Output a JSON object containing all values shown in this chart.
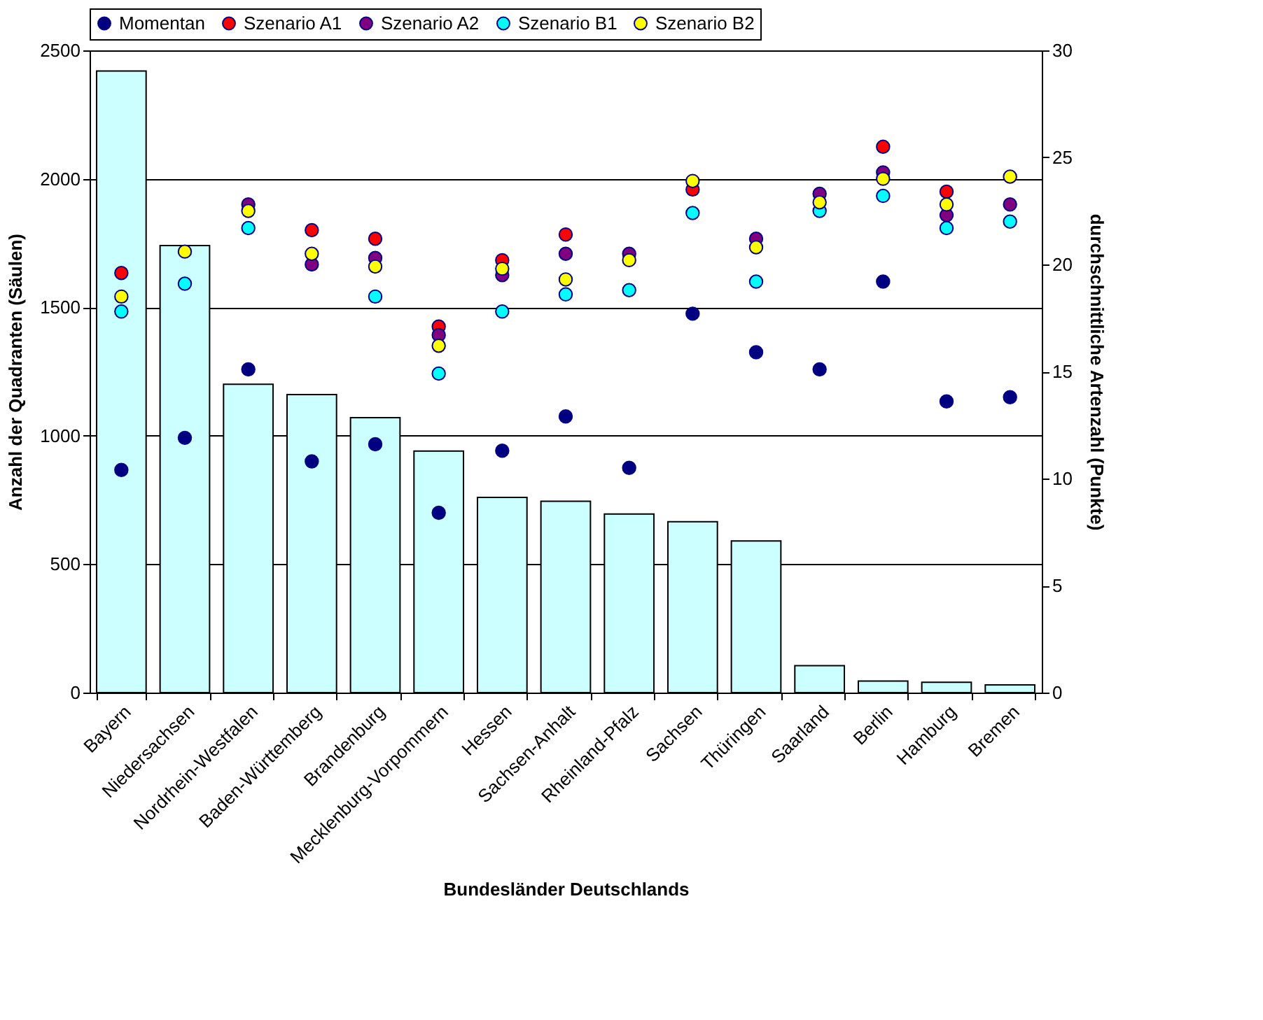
{
  "chart_data": {
    "type": "bar",
    "xlabel": "Bundesländer Deutschlands",
    "ylabel": "Anzahl der Quadranten (Säulen)",
    "y2label": "durchschnittliche Artenzahl (Punkte)",
    "categories": [
      "Bayern",
      "Niedersachsen",
      "Nordrhein-Westfalen",
      "Baden-Württemberg",
      "Brandenburg",
      "Mecklenburg-Vorpommern",
      "Hessen",
      "Sachsen-Anhalt",
      "Rheinland-Pfalz",
      "Sachsen",
      "Thüringen",
      "Saarland",
      "Berlin",
      "Hamburg",
      "Bremen"
    ],
    "ylim": [
      0,
      2500
    ],
    "yticks": [
      0,
      500,
      1000,
      1500,
      2000,
      2500
    ],
    "y2lim": [
      0,
      30
    ],
    "y2ticks": [
      0,
      5,
      10,
      15,
      20,
      25,
      30
    ],
    "grid": "y",
    "legend": "top",
    "marker": "circle",
    "series": [
      {
        "color": "#ccffff",
        "values": [
          2420,
          1740,
          1200,
          1160,
          1070,
          940,
          760,
          745,
          695,
          665,
          590,
          105,
          45,
          40,
          30
        ]
      },
      {
        "type": "scatter",
        "axis": "y2",
        "name": "Momentan",
        "color": "#000080",
        "values": [
          10.4,
          11.9,
          15.1,
          10.8,
          11.6,
          8.4,
          11.3,
          12.9,
          10.5,
          17.7,
          15.9,
          15.1,
          19.2,
          13.6,
          13.8
        ]
      },
      {
        "type": "scatter",
        "axis": "y2",
        "name": "Szenario A1",
        "color": "#ff0000",
        "values": [
          19.6,
          null,
          null,
          21.6,
          21.2,
          17.1,
          20.2,
          21.4,
          null,
          23.5,
          null,
          null,
          25.5,
          23.4,
          null
        ]
      },
      {
        "type": "scatter",
        "axis": "y2",
        "name": "Szenario A2",
        "color": "#800080",
        "values": [
          null,
          null,
          22.8,
          20.0,
          20.3,
          16.7,
          19.5,
          20.5,
          20.5,
          null,
          21.2,
          23.3,
          24.3,
          22.3,
          22.8
        ]
      },
      {
        "type": "scatter",
        "axis": "y2",
        "name": "Szenario B1",
        "color": "#00ffff",
        "values": [
          17.8,
          19.1,
          21.7,
          null,
          18.5,
          14.9,
          17.8,
          18.6,
          18.8,
          22.4,
          19.2,
          22.5,
          23.2,
          21.7,
          22.0
        ]
      },
      {
        "type": "scatter",
        "axis": "y2",
        "name": "Szenario B2",
        "color": "#ffff00",
        "values": [
          18.5,
          20.6,
          22.5,
          20.5,
          19.9,
          16.2,
          19.8,
          19.3,
          20.2,
          23.9,
          20.8,
          22.9,
          24.0,
          22.8,
          24.1
        ]
      }
    ]
  }
}
